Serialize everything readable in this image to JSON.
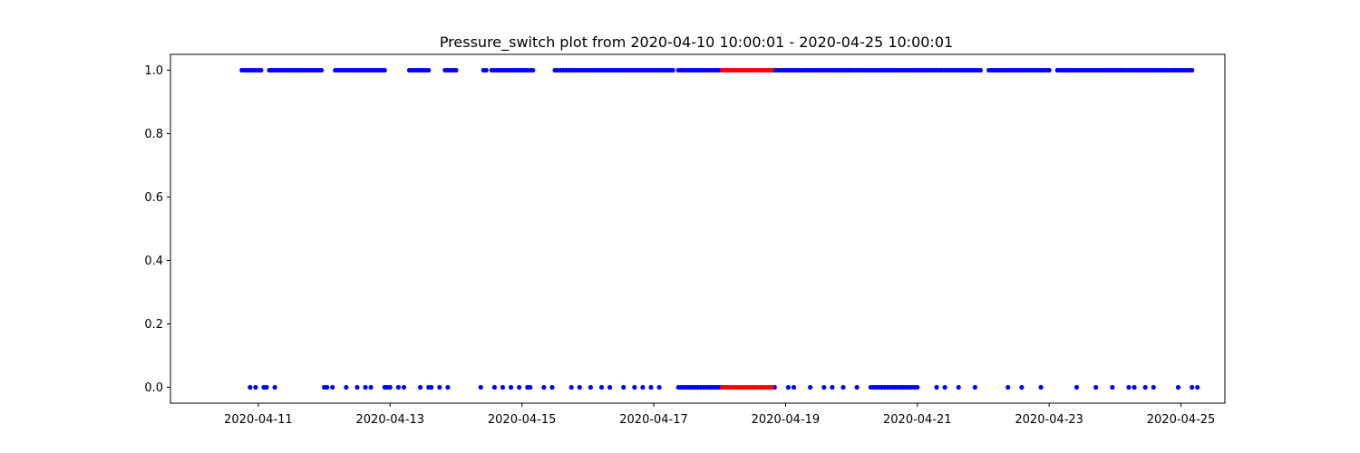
{
  "chart_data": {
    "type": "scatter",
    "title": "Pressure_switch plot from 2020-04-10 10:00:01 - 2020-04-25 10:00:01",
    "xlabel": "",
    "ylabel": "",
    "x_type": "datetime",
    "xlim": [
      "2020-04-09 16:00",
      "2020-04-25 16:00"
    ],
    "ylim": [
      -0.05,
      1.05
    ],
    "x_ticks": [
      "2020-04-11",
      "2020-04-13",
      "2020-04-15",
      "2020-04-17",
      "2020-04-19",
      "2020-04-21",
      "2020-04-23",
      "2020-04-25"
    ],
    "y_ticks": [
      "0.0",
      "0.2",
      "0.4",
      "0.6",
      "0.8",
      "1.0"
    ],
    "grid": false,
    "legend": "none",
    "series": [
      {
        "color": "#0000ff",
        "y": 1,
        "note": "dense runs of points at value 1.0",
        "ranges": [
          [
            "2020-04-10 18:00",
            "2020-04-11 01:00"
          ],
          [
            "2020-04-11 04:00",
            "2020-04-11 23:00"
          ],
          [
            "2020-04-12 04:00",
            "2020-04-12 22:00"
          ],
          [
            "2020-04-13 07:00",
            "2020-04-13 14:00"
          ],
          [
            "2020-04-13 20:00",
            "2020-04-14 00:00"
          ],
          [
            "2020-04-14 10:00",
            "2020-04-14 11:00"
          ],
          [
            "2020-04-14 13:00",
            "2020-04-15 04:00"
          ],
          [
            "2020-04-15 12:00",
            "2020-04-17 07:00"
          ],
          [
            "2020-04-17 09:00",
            "2020-04-18 01:00"
          ],
          [
            "2020-04-18 19:00",
            "2020-04-21 23:00"
          ],
          [
            "2020-04-22 02:00",
            "2020-04-23 00:00"
          ],
          [
            "2020-04-23 03:00",
            "2020-04-25 04:00"
          ]
        ],
        "points": []
      },
      {
        "color": "#ff0000",
        "y": 1,
        "ranges": [
          [
            "2020-04-18 01:00",
            "2020-04-18 19:00"
          ]
        ],
        "points": []
      },
      {
        "color": "#0000ff",
        "y": 0,
        "note": "points at value 0.0",
        "ranges": [
          [
            "2020-04-12 22:00",
            "2020-04-13 00:00"
          ],
          [
            "2020-04-17 09:00",
            "2020-04-18 01:00"
          ],
          [
            "2020-04-20 07:00",
            "2020-04-21 00:00"
          ]
        ],
        "points": [
          "2020-04-10 21:00",
          "2020-04-10 23:00",
          "2020-04-11 02:00",
          "2020-04-11 03:00",
          "2020-04-11 06:00",
          "2020-04-12 00:00",
          "2020-04-12 01:00",
          "2020-04-12 03:00",
          "2020-04-12 08:00",
          "2020-04-12 12:00",
          "2020-04-12 15:00",
          "2020-04-12 17:00",
          "2020-04-13 03:00",
          "2020-04-13 05:00",
          "2020-04-13 11:00",
          "2020-04-13 14:00",
          "2020-04-13 15:00",
          "2020-04-13 18:00",
          "2020-04-13 21:00",
          "2020-04-14 09:00",
          "2020-04-14 14:00",
          "2020-04-14 17:00",
          "2020-04-14 20:00",
          "2020-04-14 23:00",
          "2020-04-15 02:00",
          "2020-04-15 03:00",
          "2020-04-15 08:00",
          "2020-04-15 11:00",
          "2020-04-15 18:00",
          "2020-04-15 21:00",
          "2020-04-16 01:00",
          "2020-04-16 05:00",
          "2020-04-16 08:00",
          "2020-04-16 13:00",
          "2020-04-16 17:00",
          "2020-04-16 20:00",
          "2020-04-16 23:00",
          "2020-04-17 02:00",
          "2020-04-18 20:00",
          "2020-04-19 01:00",
          "2020-04-19 03:00",
          "2020-04-19 09:00",
          "2020-04-19 14:00",
          "2020-04-19 17:00",
          "2020-04-19 21:00",
          "2020-04-20 02:00",
          "2020-04-21 07:00",
          "2020-04-21 10:00",
          "2020-04-21 15:00",
          "2020-04-21 21:00",
          "2020-04-22 09:00",
          "2020-04-22 14:00",
          "2020-04-22 21:00",
          "2020-04-23 10:00",
          "2020-04-23 17:00",
          "2020-04-23 23:00",
          "2020-04-24 05:00",
          "2020-04-24 07:00",
          "2020-04-24 11:00",
          "2020-04-24 14:00",
          "2020-04-24 23:00",
          "2020-04-25 04:00",
          "2020-04-25 06:00"
        ]
      },
      {
        "color": "#ff0000",
        "y": 0,
        "ranges": [
          [
            "2020-04-18 01:00",
            "2020-04-18 19:00"
          ]
        ],
        "points": []
      }
    ]
  }
}
